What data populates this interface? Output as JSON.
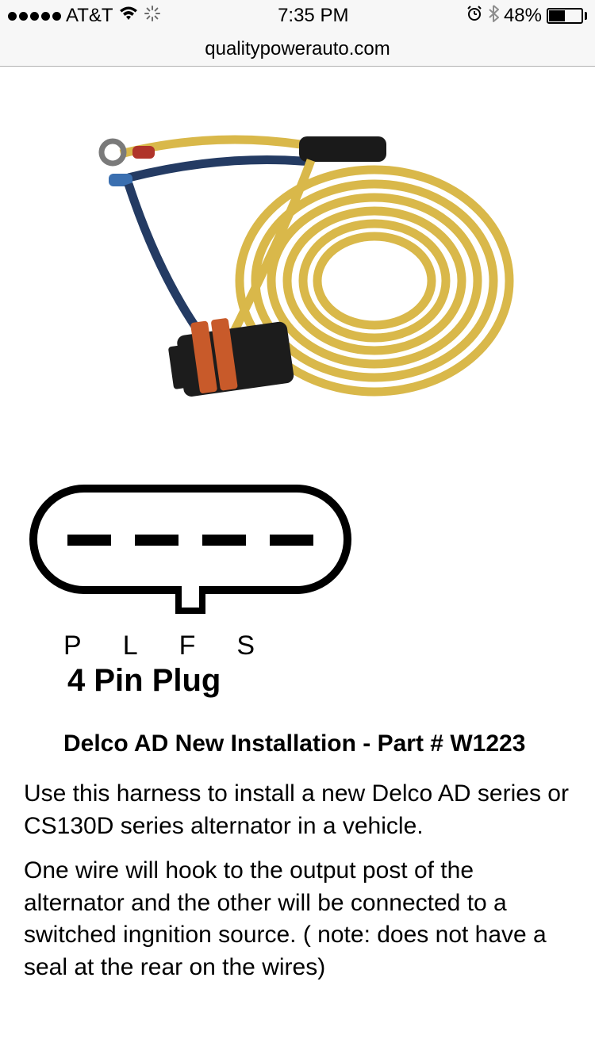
{
  "status_bar": {
    "carrier": "AT&T",
    "time": "7:35 PM",
    "battery_percent_text": "48%",
    "battery_fill_percent": 48,
    "signal_dots_filled": 5,
    "colors": {
      "bg": "#f7f7f7",
      "fg": "#000000"
    }
  },
  "url_bar": {
    "url": "qualitypowerauto.com",
    "bg": "#f7f7f7",
    "border": "#b2b2b2"
  },
  "product_photo": {
    "wire_coil_color": "#d9b84a",
    "wire_dark_color": "#243b63",
    "heatshrink_color": "#1a1a1a",
    "connector_body_color": "#1c1c1c",
    "connector_seal_color": "#c85a2a",
    "terminal_blue": "#3a6fb0",
    "terminal_red": "#b0342a",
    "background": "#ffffff"
  },
  "connector_diagram": {
    "type": "diagram",
    "pins": [
      "P",
      "L",
      "F",
      "S"
    ],
    "title": "4 Pin Plug",
    "stroke_color": "#000000",
    "stroke_width": 10,
    "pin_slot_width": 55,
    "pin_slot_height": 12,
    "font_size_labels": 34,
    "font_size_title": 40
  },
  "text": {
    "heading": "Delco AD New Installation - Part # W1223",
    "para1": "Use this harness to install a new Delco AD series or CS130D series alternator in a vehicle.",
    "para2": "One wire will hook to the output post of the alternator and the other will be connected to a switched ingnition source. ( note: does not have a seal at the rear on the wires)",
    "heading_fontsize": 30,
    "body_fontsize": 30,
    "text_color": "#000000"
  }
}
